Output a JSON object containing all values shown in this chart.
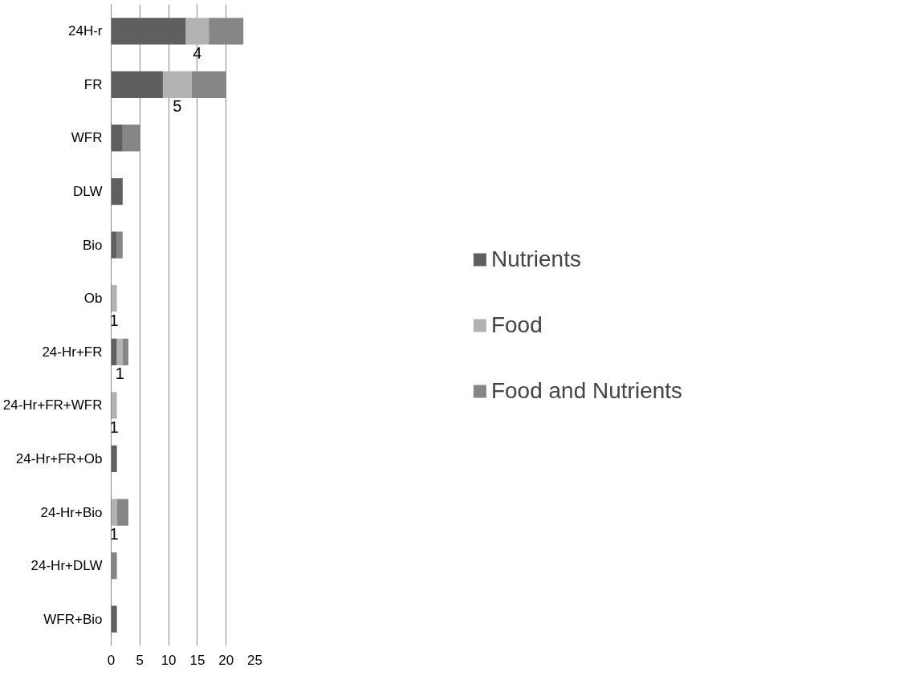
{
  "chart_data": {
    "type": "bar",
    "orientation": "horizontal",
    "stacked": true,
    "categories": [
      "24H-r",
      "FR",
      "WFR",
      "DLW",
      "Bio",
      "Ob",
      "24-Hr+FR",
      "24-Hr+FR+WFR",
      "24-Hr+FR+Ob",
      "24-Hr+Bio",
      "24-Hr+DLW",
      "WFR+Bio"
    ],
    "series": [
      {
        "name": "Nutrients",
        "color": "#5f5f5f",
        "values": [
          13,
          9,
          2,
          2,
          1,
          0,
          1,
          0,
          1,
          0,
          0,
          1
        ]
      },
      {
        "name": "Food",
        "color": "#b2b2b2",
        "values": [
          4,
          5,
          0,
          0,
          0,
          1,
          1,
          1,
          0,
          1,
          0,
          0
        ],
        "value_labels": [
          "4",
          "5",
          null,
          null,
          null,
          "1",
          "1",
          "1",
          null,
          "1",
          null,
          null
        ]
      },
      {
        "name": "Food and Nutrients",
        "color": "#868686",
        "values": [
          6,
          6,
          3,
          0,
          1,
          0,
          1,
          0,
          0,
          2,
          1,
          0
        ]
      }
    ],
    "xlim": [
      0,
      25
    ],
    "xticks": [
      0,
      5,
      10,
      15,
      20,
      25
    ],
    "grid": "x",
    "legend": "right"
  }
}
